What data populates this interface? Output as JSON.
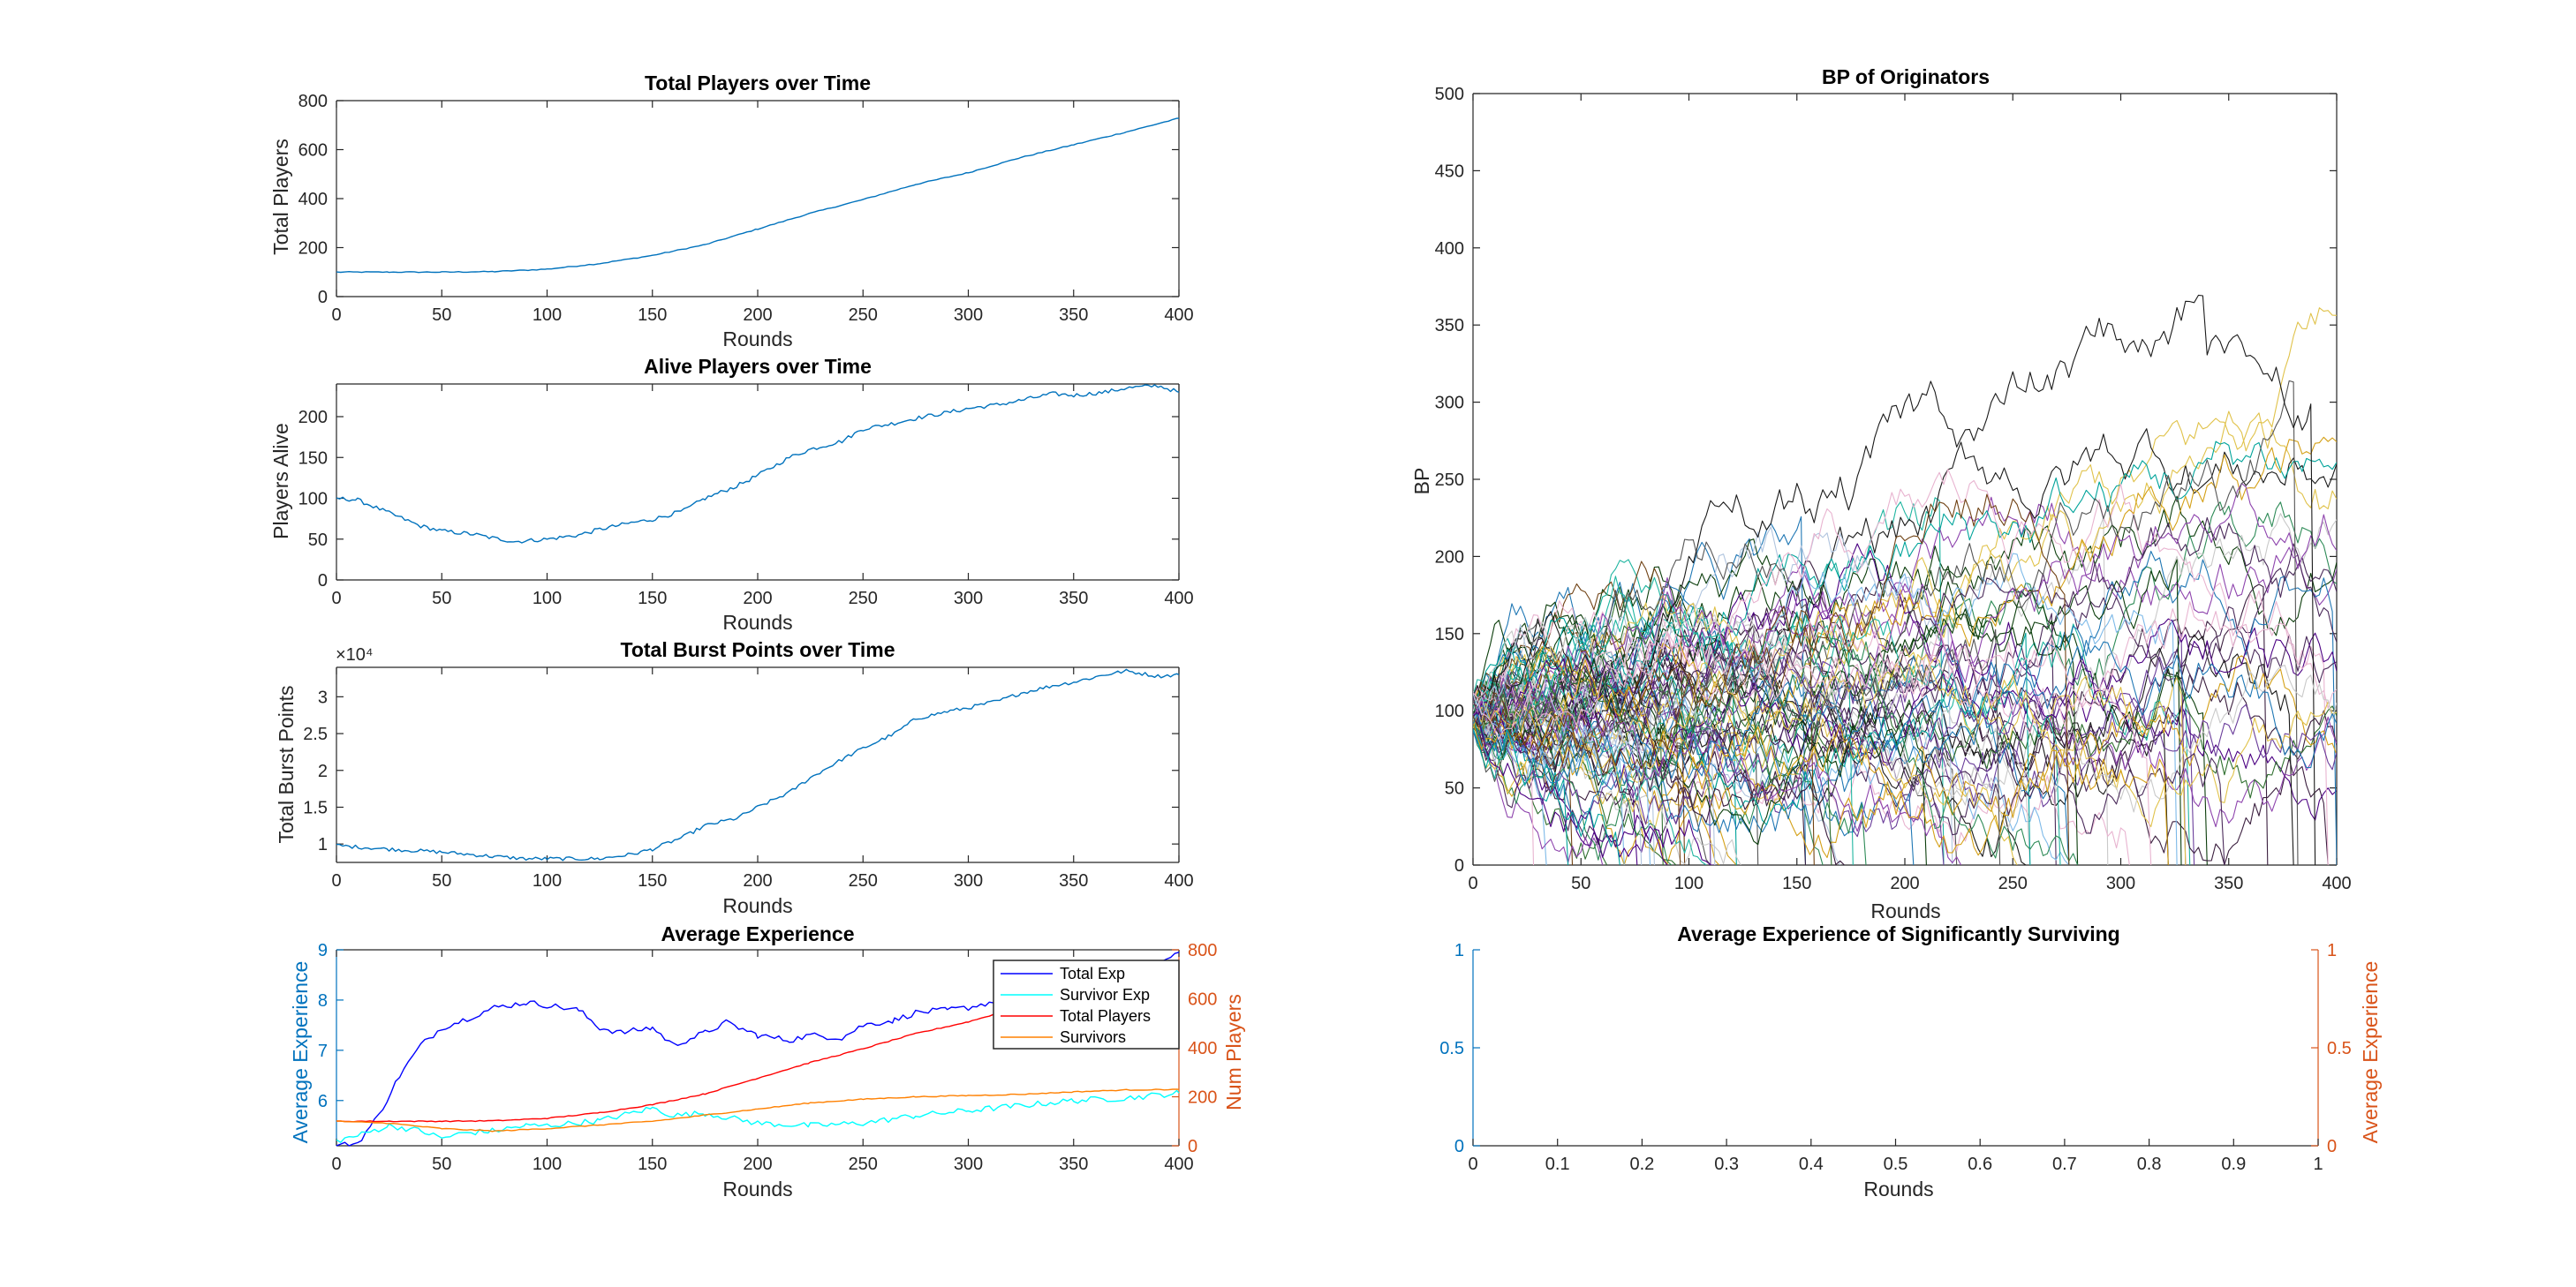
{
  "colors": {
    "matlab_blue": "#0072BD",
    "matlab_orange": "#D95319",
    "axis_gray": "#262626",
    "blue_line": "#0000FF",
    "cyan_line": "#00FFFF",
    "red_line": "#FF0000",
    "orange_line": "#FF8000"
  },
  "chart_data": [
    {
      "type": "line",
      "title": "Total Players over Time",
      "xlabel": "Rounds",
      "ylabel": "Total Players",
      "xlim": [
        0,
        400
      ],
      "ylim": [
        0,
        800
      ],
      "xticks": [
        "0",
        "50",
        "100",
        "150",
        "200",
        "250",
        "300",
        "350",
        "400"
      ],
      "yticks": [
        "0",
        "200",
        "400",
        "600",
        "800"
      ],
      "series": [
        {
          "color": "#0072BD",
          "x": [
            0,
            25,
            50,
            75,
            100,
            125,
            150,
            175,
            200,
            225,
            250,
            275,
            300,
            325,
            350,
            375,
            400
          ],
          "values": [
            100,
            100,
            100,
            102,
            112,
            135,
            168,
            212,
            276,
            340,
            396,
            458,
            506,
            568,
            620,
            672,
            728
          ]
        }
      ]
    },
    {
      "type": "line",
      "title": "Alive Players over Time",
      "xlabel": "Rounds",
      "ylabel": "Players Alive",
      "xlim": [
        0,
        400
      ],
      "ylim": [
        0,
        240
      ],
      "xticks": [
        "0",
        "50",
        "100",
        "150",
        "200",
        "250",
        "300",
        "350",
        "400"
      ],
      "yticks": [
        "0",
        "50",
        "100",
        "150",
        "200"
      ],
      "series": [
        {
          "color": "#0072BD",
          "x": [
            0,
            10,
            25,
            40,
            50,
            65,
            75,
            85,
            100,
            115,
            125,
            140,
            150,
            165,
            175,
            190,
            200,
            215,
            225,
            240,
            250,
            265,
            275,
            290,
            300,
            315,
            325,
            340,
            350,
            365,
            375,
            390,
            400
          ],
          "values": [
            100,
            98,
            82,
            66,
            60,
            56,
            51,
            47,
            50,
            55,
            62,
            70,
            74,
            85,
            100,
            115,
            128,
            150,
            160,
            170,
            185,
            192,
            198,
            205,
            210,
            215,
            220,
            228,
            226,
            230,
            235,
            238,
            230
          ]
        }
      ]
    },
    {
      "type": "line",
      "title": "Total Burst Points over Time",
      "xlabel": "Rounds",
      "ylabel": "Total Burst Points",
      "exponent_label": "×10⁴",
      "xlim": [
        0,
        400
      ],
      "ylim": [
        0.75,
        3.4
      ],
      "xticks": [
        "0",
        "50",
        "100",
        "150",
        "200",
        "250",
        "300",
        "350",
        "400"
      ],
      "yticks": [
        "1",
        "1.5",
        "2",
        "2.5",
        "3"
      ],
      "series": [
        {
          "color": "#0072BD",
          "x": [
            0,
            25,
            50,
            75,
            90,
            100,
            115,
            125,
            140,
            150,
            165,
            175,
            190,
            200,
            215,
            225,
            240,
            250,
            265,
            275,
            290,
            300,
            315,
            325,
            340,
            350,
            365,
            375,
            390,
            400
          ],
          "values": [
            0.98,
            0.93,
            0.89,
            0.83,
            0.8,
            0.8,
            0.8,
            0.8,
            0.86,
            0.93,
            1.1,
            1.25,
            1.35,
            1.5,
            1.7,
            1.9,
            2.15,
            2.3,
            2.5,
            2.7,
            2.8,
            2.85,
            2.95,
            3.05,
            3.15,
            3.2,
            3.3,
            3.35,
            3.28,
            3.3
          ]
        }
      ]
    },
    {
      "type": "line",
      "title": "Average Experience",
      "xlabel": "Rounds",
      "ylabel_left": "Average Experience",
      "ylabel_right": "Num Players",
      "xlim": [
        0,
        400
      ],
      "ylim_left": [
        5.1,
        9
      ],
      "ylim_right": [
        0,
        800
      ],
      "xticks": [
        "0",
        "50",
        "100",
        "150",
        "200",
        "250",
        "300",
        "350",
        "400"
      ],
      "yticks_left": [
        "6",
        "7",
        "8",
        "9"
      ],
      "yticks_right": [
        "0",
        "200",
        "400",
        "600",
        "800"
      ],
      "legend_location": "northeast",
      "series": [
        {
          "name": "Total Exp",
          "axis": "left",
          "color": "#0000FF",
          "x": [
            0,
            10,
            20,
            30,
            40,
            50,
            60,
            75,
            90,
            100,
            115,
            125,
            135,
            150,
            160,
            175,
            185,
            200,
            215,
            225,
            240,
            250,
            265,
            275,
            290,
            300,
            315,
            325,
            340,
            350,
            365,
            375,
            390,
            400
          ],
          "values": [
            5.1,
            5.15,
            5.7,
            6.5,
            7.1,
            7.45,
            7.6,
            7.85,
            7.95,
            7.9,
            7.8,
            7.45,
            7.35,
            7.45,
            7.1,
            7.35,
            7.55,
            7.3,
            7.2,
            7.3,
            7.25,
            7.5,
            7.6,
            7.75,
            7.8,
            7.85,
            8.0,
            8.1,
            8.2,
            8.3,
            8.4,
            8.55,
            8.7,
            8.95
          ]
        },
        {
          "name": "Survivor Exp",
          "axis": "left",
          "color": "#00FFFF",
          "x": [
            0,
            10,
            25,
            40,
            50,
            60,
            75,
            90,
            100,
            125,
            150,
            160,
            175,
            200,
            225,
            250,
            275,
            300,
            325,
            350,
            375,
            400
          ],
          "values": [
            5.2,
            5.3,
            5.5,
            5.4,
            5.25,
            5.35,
            5.4,
            5.5,
            5.5,
            5.6,
            5.85,
            5.7,
            5.75,
            5.55,
            5.5,
            5.55,
            5.7,
            5.8,
            5.9,
            6.0,
            6.05,
            6.15
          ]
        },
        {
          "name": "Total Players",
          "axis": "right",
          "color": "#FF0000",
          "x": [
            0,
            25,
            50,
            75,
            100,
            125,
            150,
            175,
            200,
            225,
            250,
            275,
            300,
            325,
            350,
            375,
            400
          ],
          "values": [
            100,
            100,
            100,
            102,
            112,
            135,
            168,
            212,
            276,
            340,
            396,
            458,
            506,
            568,
            620,
            672,
            728
          ]
        },
        {
          "name": "Survivors",
          "axis": "right",
          "color": "#FF8000",
          "x": [
            0,
            25,
            50,
            75,
            100,
            125,
            150,
            175,
            200,
            225,
            250,
            275,
            300,
            325,
            350,
            375,
            400
          ],
          "values": [
            100,
            92,
            70,
            60,
            70,
            85,
            100,
            125,
            150,
            175,
            190,
            200,
            205,
            210,
            220,
            228,
            230
          ]
        }
      ]
    },
    {
      "type": "line",
      "title": "BP of Originators",
      "xlabel": "Rounds",
      "ylabel": "BP",
      "xlim": [
        0,
        400
      ],
      "ylim": [
        0,
        500
      ],
      "xticks": [
        "0",
        "50",
        "100",
        "150",
        "200",
        "250",
        "300",
        "350",
        "400"
      ],
      "yticks": [
        "0",
        "50",
        "100",
        "150",
        "200",
        "250",
        "300",
        "350",
        "400",
        "450",
        "500"
      ],
      "series_count": 100,
      "note_series": "100 random-walk trajectories starting at BP=100, many capped near 370"
    },
    {
      "type": "line",
      "title": "Average Experience of Significantly Surviving",
      "xlabel": "Rounds",
      "ylabel_right": "Average Experience",
      "xlim": [
        0,
        1
      ],
      "ylim_left": [
        0,
        1
      ],
      "ylim_right": [
        0,
        1
      ],
      "xticks": [
        "0",
        "0.1",
        "0.2",
        "0.3",
        "0.4",
        "0.5",
        "0.6",
        "0.7",
        "0.8",
        "0.9",
        "1"
      ],
      "yticks_left": [
        "0",
        "0.5",
        "1"
      ],
      "yticks_right": [
        "0",
        "0.5",
        "1"
      ],
      "series": []
    }
  ]
}
